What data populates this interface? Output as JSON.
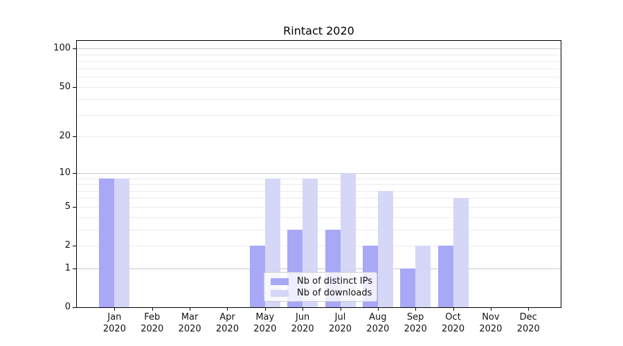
{
  "chart_data": {
    "type": "bar",
    "title": "Rintact 2020",
    "months": [
      "Jan",
      "Feb",
      "Mar",
      "Apr",
      "May",
      "Jun",
      "Jul",
      "Aug",
      "Sep",
      "Oct",
      "Nov",
      "Dec"
    ],
    "year": "2020",
    "series": [
      {
        "name": "Nb of distinct IPs",
        "color": "#a8a8f7",
        "values": [
          9,
          0,
          0,
          0,
          2,
          3,
          3,
          2,
          1,
          2,
          0,
          0
        ]
      },
      {
        "name": "Nb of downloads",
        "color": "#d6d6f7",
        "values": [
          9,
          0,
          0,
          0,
          9,
          9,
          10,
          7,
          2,
          6,
          0,
          0
        ]
      }
    ],
    "y_scale": "log1p",
    "ylim": [
      0,
      115
    ],
    "y_ticks": [
      0,
      1,
      2,
      5,
      10,
      20,
      50,
      100
    ],
    "major_gridlines": [
      1,
      10,
      100
    ],
    "minor_gridlines": [
      2,
      3,
      4,
      5,
      6,
      7,
      8,
      9,
      20,
      30,
      40,
      50,
      60,
      70,
      80,
      90
    ],
    "legend": {
      "position": "lower center",
      "entries": [
        "Nb of distinct IPs",
        "Nb of downloads"
      ]
    }
  }
}
